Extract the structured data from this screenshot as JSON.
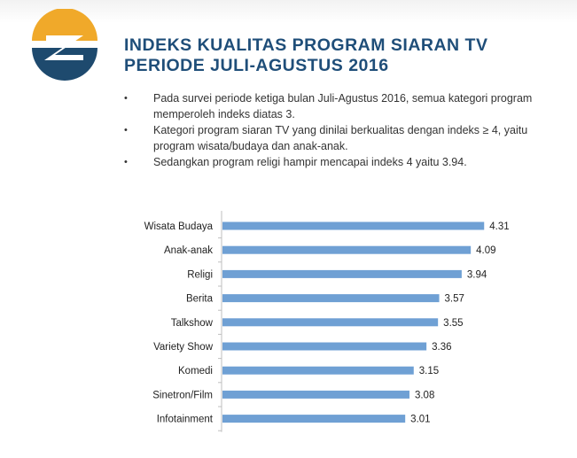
{
  "header": {
    "title_line1": "INDEKS KUALITAS PROGRAM SIARAN TV",
    "title_line2": "PERIODE JULI-AGUSTUS 2016",
    "logo_icon": "company-logo-icon",
    "colors": {
      "title": "#1f4e79",
      "logo_orange": "#f0a92a",
      "logo_navy": "#1e4a6e"
    }
  },
  "bullets": [
    {
      "marker": "•",
      "text": "Pada survei periode ketiga bulan Juli-Agustus 2016, semua kategori program memperoleh indeks diatas 3."
    },
    {
      "marker": "•",
      "text": "Kategori program siaran TV yang dinilai berkualitas dengan indeks ≥ 4,  yaitu program wisata/budaya dan anak-anak."
    },
    {
      "marker": "•",
      "text": "Sedangkan program religi hampir mencapai indeks 4 yaitu 3.94."
    }
  ],
  "chart_data": {
    "type": "bar",
    "orientation": "horizontal",
    "categories": [
      "Wisata Budaya",
      "Anak-anak",
      "Religi",
      "Berita",
      "Talkshow",
      "Variety Show",
      "Komedi",
      "Sinetron/Film",
      "Infotainment"
    ],
    "values": [
      4.31,
      4.09,
      3.94,
      3.57,
      3.55,
      3.36,
      3.15,
      3.08,
      3.01
    ],
    "value_labels": [
      "4.31",
      "4.09",
      "3.94",
      "3.57",
      "3.55",
      "3.36",
      "3.15",
      "3.08",
      "3.01"
    ],
    "title": "",
    "xlabel": "",
    "ylabel": "",
    "xlim": [
      0,
      5
    ],
    "grid": false,
    "bar_color": "#6fa0d4"
  }
}
